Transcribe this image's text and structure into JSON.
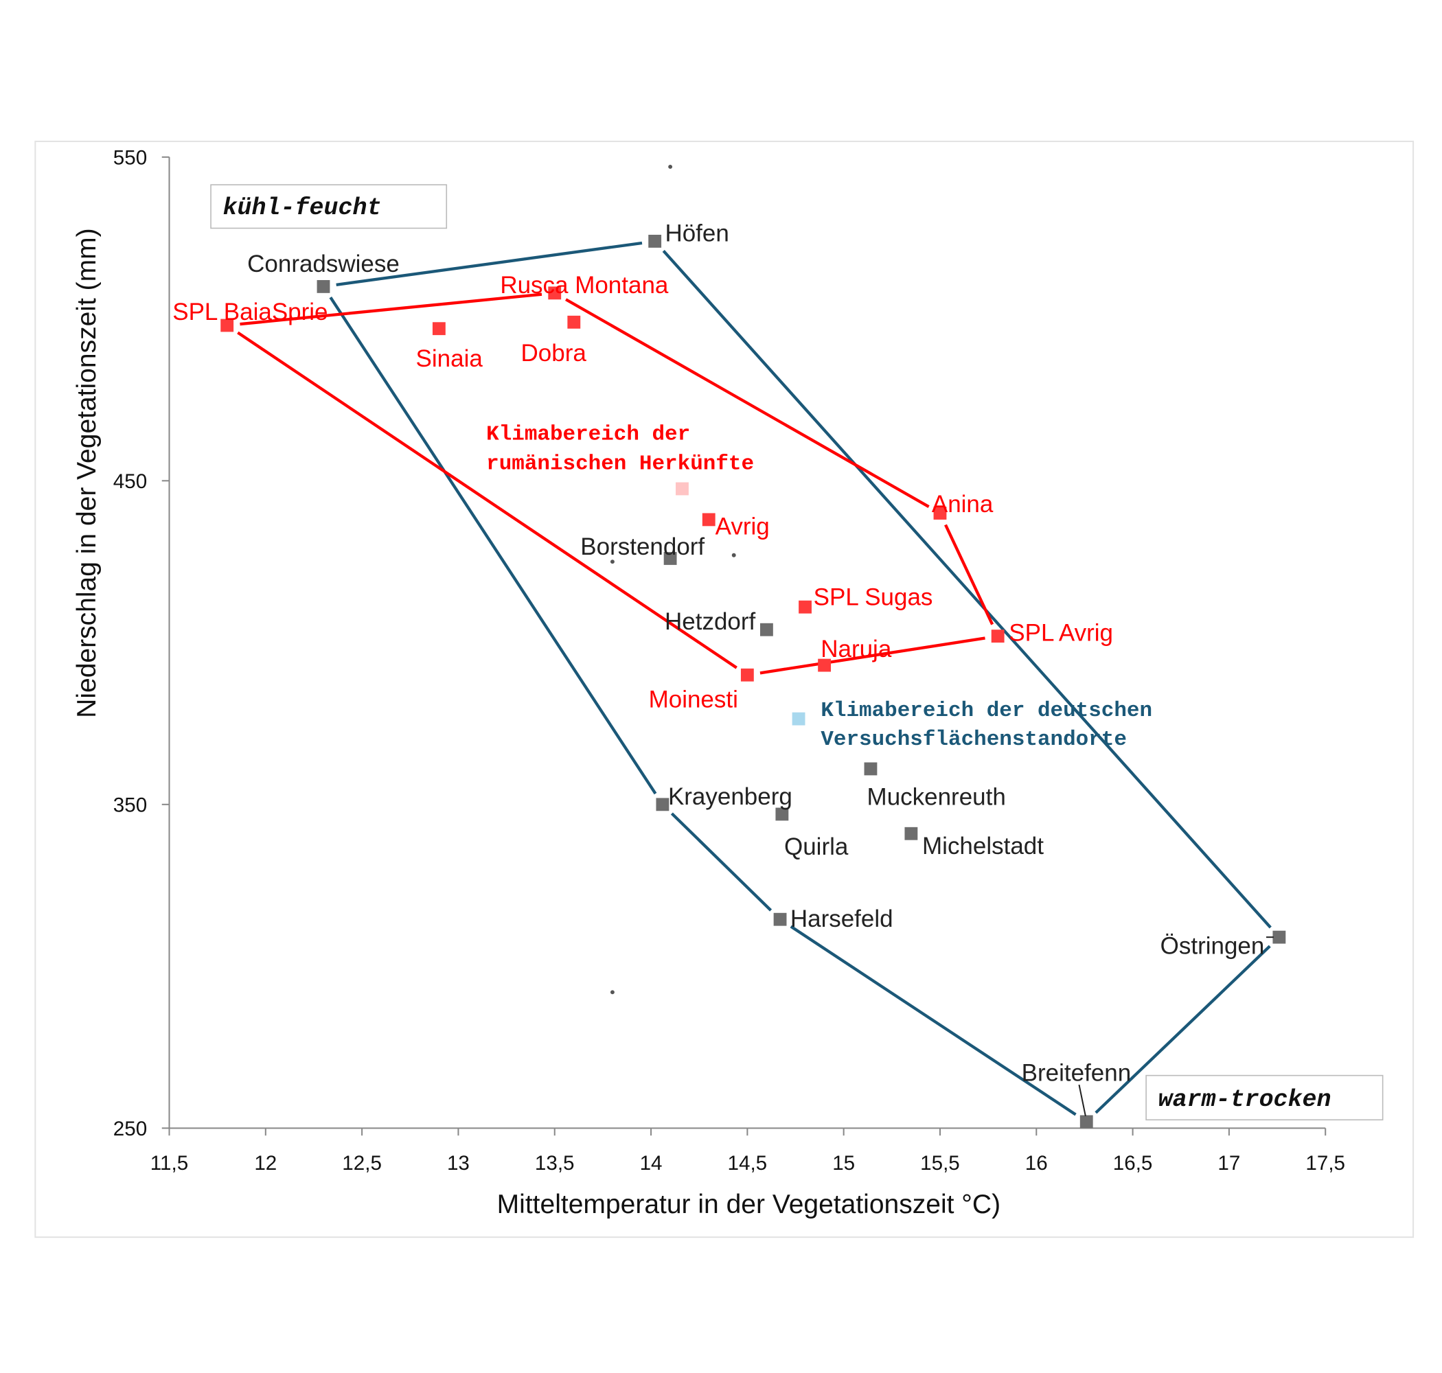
{
  "chart_data": {
    "type": "scatter",
    "xlabel": "Mitteltemperatur in der Vegetationszeit °C)",
    "ylabel": "Niederschlag in der Vegetationszeit (mm)",
    "xlim": [
      11.5,
      17.5
    ],
    "ylim": [
      250,
      550
    ],
    "x_ticks": [
      "11,5",
      "12",
      "12,5",
      "13",
      "13,5",
      "14",
      "14,5",
      "15",
      "15,5",
      "16",
      "16,5",
      "17",
      "17,5"
    ],
    "y_ticks": [
      "550",
      "450",
      "350",
      "250"
    ],
    "grid": false,
    "corner_labels": {
      "top_left": "kühl-feucht",
      "bottom_right": "warm-trocken"
    },
    "annotations": {
      "romanian": [
        "Klimabereich der",
        "rumänischen Herkünfte"
      ],
      "german": [
        "Klimabereich der deutschen",
        "Versuchsflächenstandorte"
      ]
    },
    "colors": {
      "german": "#1b5878",
      "romanian": "#ff0000",
      "gray_marker": "#6d6d6d",
      "red_marker": "#ff3b3b",
      "romanian_legend": "#ffc4c4",
      "german_legend": "#a8d8ee"
    },
    "series": [
      {
        "name": "Deutsche Versuchsflächen",
        "points": [
          {
            "label": "Conradswiese",
            "x": 12.3,
            "y": 510
          },
          {
            "label": "Höfen",
            "x": 14.02,
            "y": 524
          },
          {
            "label": "Borstendorf",
            "x": 14.1,
            "y": 426
          },
          {
            "label": "Hetzdorf",
            "x": 14.6,
            "y": 404
          },
          {
            "label": "Krayenberg",
            "x": 14.06,
            "y": 350
          },
          {
            "label": "Quirla",
            "x": 14.68,
            "y": 347
          },
          {
            "label": "Muckenreuth",
            "x": 15.14,
            "y": 361
          },
          {
            "label": "Michelstadt",
            "x": 15.35,
            "y": 341
          },
          {
            "label": "Harsefeld",
            "x": 14.67,
            "y": 314.5
          },
          {
            "label": "Östringen",
            "x": 17.26,
            "y": 309
          },
          {
            "label": "Breitefenn",
            "x": 16.26,
            "y": 252
          }
        ]
      },
      {
        "name": "Rumänische Herkünfte",
        "points": [
          {
            "label": "SPL BaiaSprie",
            "x": 11.8,
            "y": 498
          },
          {
            "label": "Rusca Montana",
            "x": 13.5,
            "y": 508
          },
          {
            "label": "Sinaia",
            "x": 12.9,
            "y": 497
          },
          {
            "label": "Dobra",
            "x": 13.6,
            "y": 499
          },
          {
            "label": "Anina",
            "x": 15.5,
            "y": 440
          },
          {
            "label": "Avrig",
            "x": 14.3,
            "y": 438
          },
          {
            "label": "SPL Sugas",
            "x": 14.8,
            "y": 411
          },
          {
            "label": "SPL Avrig",
            "x": 15.8,
            "y": 402
          },
          {
            "label": "Naruja",
            "x": 14.9,
            "y": 393
          },
          {
            "label": "Moinesti",
            "x": 14.5,
            "y": 390
          }
        ]
      }
    ],
    "german_hull": [
      "Conradswiese",
      "Höfen",
      "Östringen",
      "Breitefenn",
      "Harsefeld",
      "Krayenberg"
    ],
    "romanian_hull": [
      "SPL BaiaSprie",
      "Rusca Montana",
      "Anina",
      "SPL Avrig",
      "Moinesti"
    ],
    "small_dots": [
      {
        "x": 14.1,
        "y": 547
      },
      {
        "x": 13.8,
        "y": 425
      },
      {
        "x": 14.43,
        "y": 427
      },
      {
        "x": 13.8,
        "y": 292
      }
    ]
  }
}
